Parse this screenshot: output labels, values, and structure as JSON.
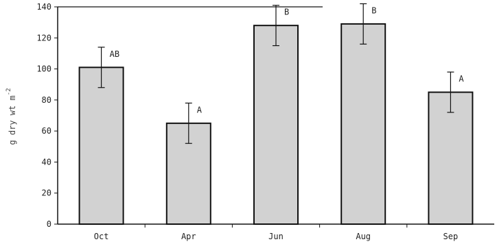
{
  "chart_data": {
    "type": "bar",
    "categories": [
      "Oct",
      "Apr",
      "Jun",
      "Aug",
      "Sep"
    ],
    "values": [
      101,
      65,
      128,
      129,
      85
    ],
    "errors": [
      13,
      13,
      13,
      13,
      13
    ],
    "significance": [
      "AB",
      "A",
      "B",
      "B",
      "A"
    ],
    "ylabel": "g dry wt m",
    "ylabel_superscript": "-2",
    "ylim": [
      0,
      140
    ],
    "yticks": [
      0,
      20,
      40,
      60,
      80,
      100,
      120,
      140
    ],
    "grid": false,
    "colors": {
      "bar_fill": "#d2d2d2",
      "bar_stroke": "#111111",
      "axis": "#111111"
    }
  }
}
